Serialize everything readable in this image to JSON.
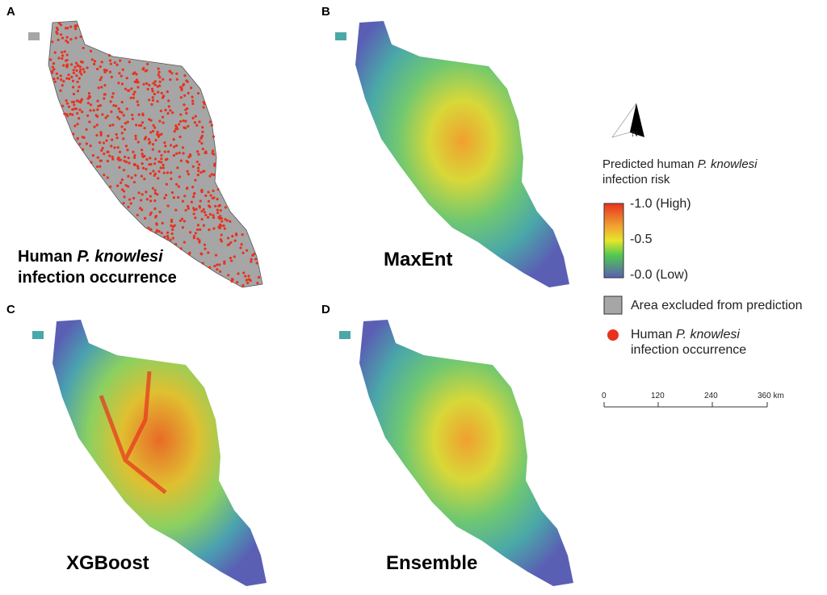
{
  "panels": [
    {
      "letter": "A",
      "title_pre": "Human ",
      "title_italic": "P. knowlesi",
      "title_post": "infection occurrence"
    },
    {
      "letter": "B",
      "title": "MaxEnt"
    },
    {
      "letter": "C",
      "title": "XGBoost"
    },
    {
      "letter": "D",
      "title": "Ensemble"
    }
  ],
  "legend": {
    "north": "N",
    "risk_title_pre": "Predicted human ",
    "risk_title_italic": "P. knowlesi",
    "risk_title_post": "infection risk",
    "high": "-1.0 (High)",
    "mid": "-0.5",
    "low": "-0.0 (Low)",
    "excluded": "Area excluded from prediction",
    "occ_pre": "Human ",
    "occ_italic": "P. knowlesi",
    "occ_post": "infection occurrence",
    "scale_ticks": [
      "0",
      "120",
      "240",
      "360 km"
    ]
  },
  "colors": {
    "excluded": "#a6a6a6",
    "occurrence": "#e8321e",
    "high": "#e8321e",
    "mid": "#e6e62a",
    "low": "#5a5fb4"
  }
}
